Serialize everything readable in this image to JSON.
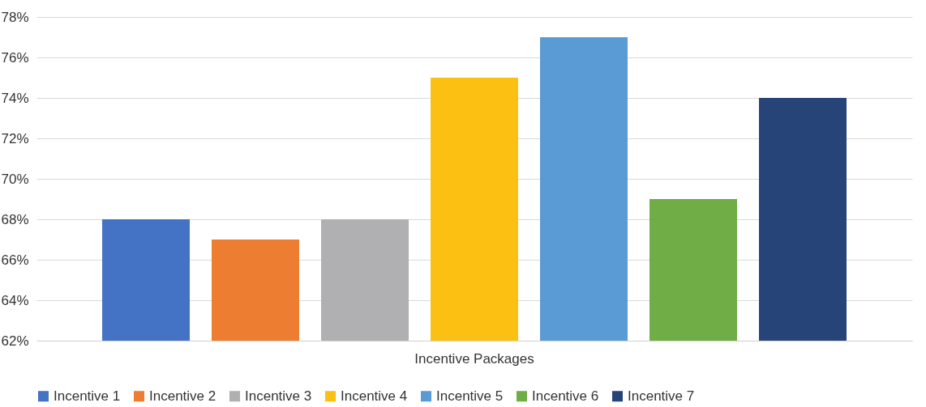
{
  "chart_data": {
    "type": "bar",
    "categories": [
      "Incentive Packages"
    ],
    "series": [
      {
        "name": "Incentive 1",
        "color": "#4472c4",
        "values": [
          68
        ]
      },
      {
        "name": "Incentive 2",
        "color": "#ed7d31",
        "values": [
          67
        ]
      },
      {
        "name": "Incentive 3",
        "color": "#b0b0b2",
        "values": [
          68
        ]
      },
      {
        "name": "Incentive 4",
        "color": "#fbc012",
        "values": [
          75
        ]
      },
      {
        "name": "Incentive 5",
        "color": "#5b9bd5",
        "values": [
          77
        ]
      },
      {
        "name": "Incentive 6",
        "color": "#70ad47",
        "values": [
          69
        ]
      },
      {
        "name": "Incentive 7",
        "color": "#264478",
        "values": [
          74
        ]
      }
    ],
    "ylim": [
      62,
      78
    ],
    "yticks": [
      {
        "value": 62,
        "label": "62%"
      },
      {
        "value": 64,
        "label": "64%"
      },
      {
        "value": 66,
        "label": "66%"
      },
      {
        "value": 68,
        "label": "68%"
      },
      {
        "value": 70,
        "label": "70%"
      },
      {
        "value": 72,
        "label": "72%"
      },
      {
        "value": 74,
        "label": "74%"
      },
      {
        "value": 76,
        "label": "76%"
      },
      {
        "value": 78,
        "label": "78%"
      }
    ],
    "grid": "y",
    "legend": "bottom"
  }
}
